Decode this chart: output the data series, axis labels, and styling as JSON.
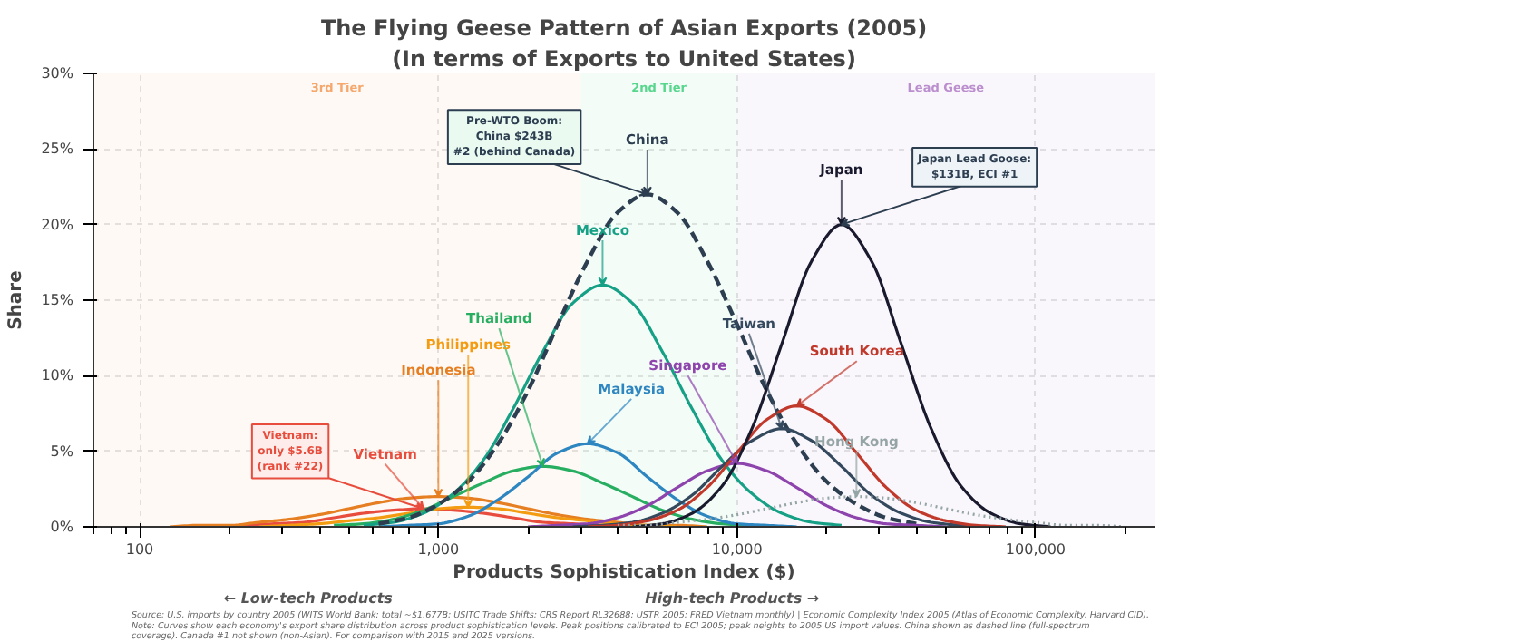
{
  "chart_data": {
    "type": "line",
    "title": "The Flying Geese Pattern of Asian Exports (2005)",
    "subtitle": "(In terms of Exports to United States)",
    "xlabel": "Products Sophistication Index ($)",
    "ylabel": "Share",
    "log": "x",
    "grid": true,
    "marker": "none",
    "xlim": [
      70,
      250000
    ],
    "xticks": [
      {
        "value": 100,
        "label": "100"
      },
      {
        "value": 1000,
        "label": "1,000"
      },
      {
        "value": 10000,
        "label": "10,000"
      },
      {
        "value": 100000,
        "label": "100,000"
      }
    ],
    "ylim": [
      0,
      30
    ],
    "yticks": [
      {
        "value": 0,
        "label": "0%"
      },
      {
        "value": 5,
        "label": "5%"
      },
      {
        "value": 10,
        "label": "10%"
      },
      {
        "value": 15,
        "label": "15%"
      },
      {
        "value": 20,
        "label": "20%"
      },
      {
        "value": 25,
        "label": "25%"
      },
      {
        "value": 30,
        "label": "30%"
      }
    ],
    "bands": [
      {
        "axis": "x",
        "from": 70,
        "to": 3000,
        "label": "3rd Tier",
        "color": "#f5a76c"
      },
      {
        "axis": "x",
        "from": 3000,
        "to": 10000,
        "label": "2nd Tier",
        "color": "#58d68d"
      },
      {
        "axis": "x",
        "from": 10000,
        "to": 250000,
        "label": "Lead Geese",
        "color": "#bb8fce"
      }
    ],
    "series": [
      {
        "name": "Vietnam",
        "color": "#e74c3c",
        "line_style": "solid",
        "x": [
          178,
          224,
          282,
          355,
          447,
          562,
          708,
          891,
          1122,
          1413,
          1778,
          2239,
          2818,
          3548,
          4467
        ],
        "values": [
          0,
          0.1,
          0.2,
          0.3,
          0.6,
          0.9,
          1.1,
          1.2,
          1.1,
          0.9,
          0.6,
          0.3,
          0.2,
          0.1,
          0
        ]
      },
      {
        "name": "Indonesia",
        "color": "#e67e22",
        "line_style": "solid",
        "x": [
          126,
          158,
          200,
          251,
          316,
          398,
          501,
          631,
          794,
          1000,
          1259,
          1585,
          1995,
          2512,
          3162,
          3981,
          5012,
          6310,
          7943
        ],
        "values": [
          0,
          0.1,
          0.1,
          0.3,
          0.5,
          0.8,
          1.2,
          1.6,
          1.9,
          2,
          1.9,
          1.6,
          1.2,
          0.8,
          0.5,
          0.3,
          0.1,
          0.1,
          0
        ]
      },
      {
        "name": "Philippines",
        "color": "#f39c12",
        "line_style": "solid",
        "x": [
          251,
          316,
          398,
          501,
          631,
          794,
          1000,
          1259,
          1585,
          1995,
          2512,
          3162,
          3981,
          5012,
          6310
        ],
        "values": [
          0,
          0.1,
          0.2,
          0.4,
          0.6,
          0.9,
          1.2,
          1.3,
          1.2,
          0.9,
          0.6,
          0.4,
          0.2,
          0.1,
          0
        ]
      },
      {
        "name": "Thailand",
        "color": "#27ae60",
        "line_style": "solid",
        "x": [
          447,
          562,
          708,
          891,
          1122,
          1413,
          1778,
          2239,
          2818,
          3548,
          4467,
          5623,
          7079,
          8913,
          11220
        ],
        "values": [
          0.1,
          0.2,
          0.5,
          1.1,
          2,
          2.9,
          3.7,
          4,
          3.7,
          2.9,
          2,
          1.1,
          0.5,
          0.2,
          0.1
        ]
      },
      {
        "name": "Malaysia",
        "color": "#2e86c1",
        "line_style": "solid",
        "x": [
          631,
          794,
          1000,
          1259,
          1585,
          1995,
          2512,
          3162,
          3981,
          5012,
          6310,
          7943,
          10000,
          12589,
          15849
        ],
        "values": [
          0,
          0.1,
          0.2,
          0.7,
          1.8,
          3.3,
          4.9,
          5.5,
          4.9,
          3.3,
          1.8,
          0.7,
          0.2,
          0.1,
          0
        ]
      },
      {
        "name": "Mexico",
        "color": "#16a085",
        "line_style": "solid",
        "x": [
          562,
          708,
          891,
          1122,
          1413,
          1778,
          2239,
          2818,
          3548,
          4467,
          5623,
          7079,
          8913,
          11220,
          14125,
          17783,
          22387
        ],
        "values": [
          0.1,
          0.3,
          0.9,
          2.2,
          4.4,
          7.8,
          11.6,
          14.8,
          16,
          14.8,
          11.6,
          7.8,
          4.4,
          2.2,
          0.9,
          0.3,
          0.1
        ]
      },
      {
        "name": "China",
        "color": "#2c3e50",
        "line_style": "dashed",
        "x": [
          631,
          794,
          1000,
          1259,
          1585,
          1995,
          2512,
          3162,
          3981,
          5012,
          6310,
          7943,
          10000,
          12589,
          15849,
          19953,
          25119,
          31623,
          39811
        ],
        "values": [
          0.2,
          0.6,
          1.5,
          3.0,
          5.5,
          9.0,
          13.4,
          17.6,
          20.8,
          22,
          20.8,
          17.6,
          13.4,
          9.0,
          5.5,
          3.0,
          1.5,
          0.6,
          0.2
        ]
      },
      {
        "name": "Singapore",
        "color": "#8e44ad",
        "line_style": "solid",
        "x": [
          1995,
          2512,
          3162,
          3981,
          5012,
          6310,
          7943,
          10000,
          12589,
          15849,
          19953,
          25119,
          31623,
          39811,
          50119
        ],
        "values": [
          0,
          0.1,
          0.2,
          0.6,
          1.4,
          2.6,
          3.7,
          4.2,
          3.7,
          2.6,
          1.4,
          0.6,
          0.2,
          0.1,
          0
        ]
      },
      {
        "name": "Taiwan",
        "color": "#34495e",
        "line_style": "solid",
        "x": [
          2818,
          3548,
          4467,
          5623,
          7079,
          8913,
          11220,
          14125,
          17783,
          22387,
          28184,
          35481,
          44668,
          56234,
          70795
        ],
        "values": [
          0,
          0.1,
          0.3,
          0.9,
          2.1,
          4,
          5.7,
          6.5,
          5.7,
          4,
          2.1,
          0.9,
          0.3,
          0.1,
          0
        ]
      },
      {
        "name": "South Korea",
        "color": "#c0392b",
        "line_style": "solid",
        "x": [
          3162,
          3981,
          5012,
          6310,
          7943,
          10000,
          12589,
          15849,
          19953,
          25119,
          31623,
          39811,
          50119,
          63096,
          79433
        ],
        "values": [
          0,
          0.1,
          0.4,
          1.1,
          2.6,
          4.9,
          7.1,
          8,
          7.1,
          4.9,
          2.6,
          1.1,
          0.4,
          0.1,
          0
        ]
      },
      {
        "name": "Japan",
        "color": "#1a1a2e",
        "line_style": "solid",
        "x": [
          4467,
          5623,
          7079,
          8913,
          11220,
          14125,
          17783,
          22387,
          28184,
          35481,
          44668,
          56234,
          70795,
          89125,
          112202
        ],
        "values": [
          0,
          0.2,
          0.9,
          2.7,
          6.5,
          12.1,
          17.6,
          20,
          17.6,
          12.1,
          6.5,
          2.7,
          0.9,
          0.2,
          0
        ]
      },
      {
        "name": "Hong Kong",
        "color": "#95a5a6",
        "line_style": "dotted",
        "x": [
          3981,
          5012,
          6310,
          7943,
          10000,
          12589,
          15849,
          19953,
          25119,
          31623,
          39811,
          50119,
          63096,
          79433,
          100000,
          125893,
          158489,
          199526
        ],
        "values": [
          0.1,
          0.1,
          0.3,
          0.5,
          0.8,
          1.2,
          1.6,
          1.9,
          2,
          1.9,
          1.6,
          1.2,
          0.8,
          0.5,
          0.3,
          0.1,
          0.1,
          0
        ]
      }
    ],
    "annotations": [
      {
        "text": "Pre-WTO Boom:\nChina $243B\n#2 (behind Canada)",
        "x": 5012,
        "y": 22
      },
      {
        "text": "Japan Lead Goose:\n$131B, ECI #1",
        "x": 22387,
        "y": 20
      },
      {
        "text": "Vietnam:\nonly $5.6B\n(rank #22)",
        "x": 891,
        "y": 1.2
      },
      "← Low-tech Products",
      "High-tech Products →",
      "Source: U.S. imports by country 2005 (WITS World Bank: total ~$1,677B; USITC Trade Shifts; CRS Report RL32688; USTR 2005; FRED Vietnam monthly) | Economic Complexity Index 2005 (Atlas of Economic Complexity, Harvard CID).",
      "Note: Curves show each economy's export share distribution across product sophistication levels. Peak positions calibrated to ECI 2005; peak heights to 2005 US import values. China shown as dashed line (full-spectrum coverage). Canada #1 not shown (non-Asian). For comparison with 2015 and 2025 versions."
    ]
  }
}
